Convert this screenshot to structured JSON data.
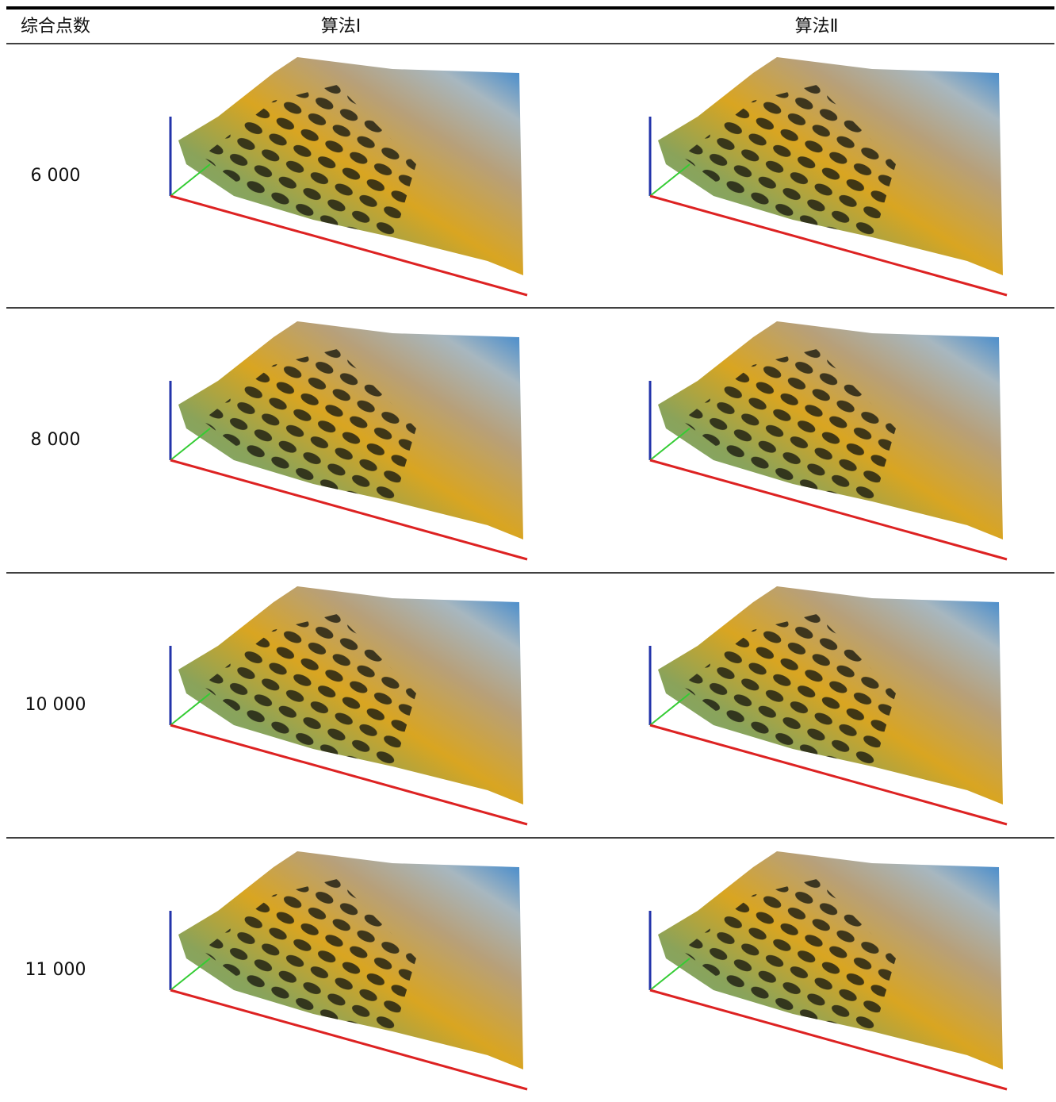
{
  "table": {
    "header": [
      "综合点数",
      "算法Ⅰ",
      "算法Ⅱ"
    ],
    "rows": [
      [
        "6 000"
      ],
      [
        "8 000"
      ],
      [
        "10 000"
      ],
      [
        "11 000"
      ]
    ]
  }
}
